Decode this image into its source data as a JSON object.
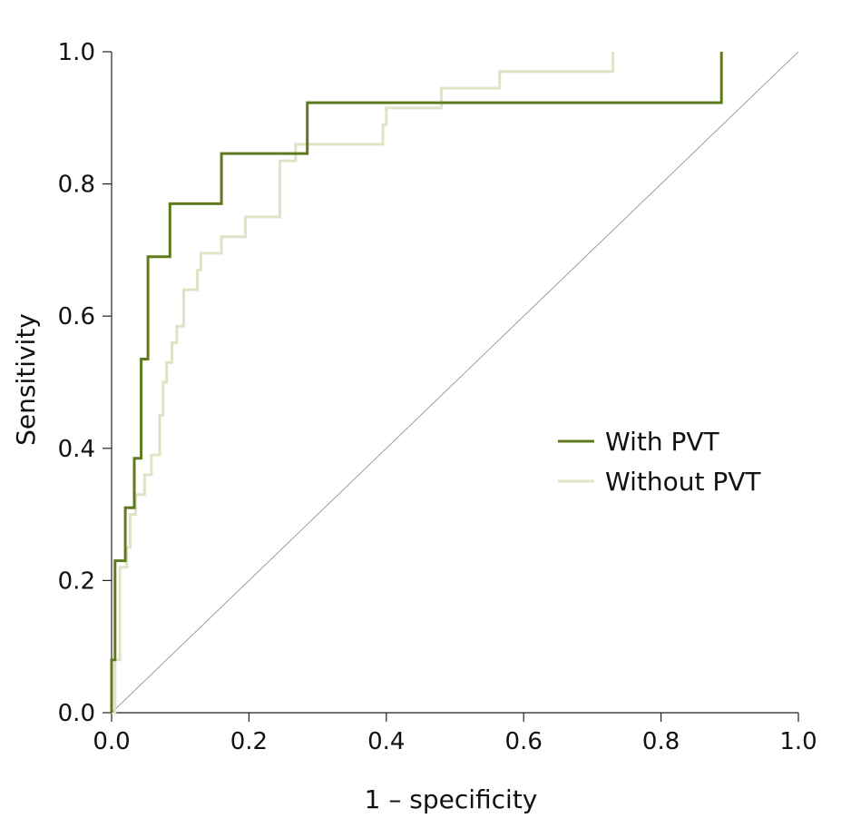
{
  "chart_data": {
    "type": "line",
    "title": "",
    "xlabel": "1 – specificity",
    "ylabel": "Sensitivity",
    "xlim": [
      0,
      1
    ],
    "ylim": [
      0,
      1
    ],
    "x_ticks": [
      "0.0",
      "0.2",
      "0.4",
      "0.6",
      "0.8",
      "1.0"
    ],
    "y_ticks": [
      "0.0",
      "0.2",
      "0.4",
      "0.6",
      "0.8",
      "1.0"
    ],
    "grid": false,
    "legend_position": "center-right",
    "reference_line": {
      "from": [
        0,
        0
      ],
      "to": [
        1,
        1
      ],
      "color": "#888888"
    },
    "series": [
      {
        "name": "With PVT",
        "color": "#5f7a1e",
        "points": [
          [
            0,
            0
          ],
          [
            0,
            0.08
          ],
          [
            0.005,
            0.08
          ],
          [
            0.005,
            0.23
          ],
          [
            0.02,
            0.23
          ],
          [
            0.02,
            0.31
          ],
          [
            0.033,
            0.31
          ],
          [
            0.033,
            0.385
          ],
          [
            0.043,
            0.385
          ],
          [
            0.043,
            0.535
          ],
          [
            0.053,
            0.535
          ],
          [
            0.053,
            0.69
          ],
          [
            0.085,
            0.69
          ],
          [
            0.085,
            0.77
          ],
          [
            0.16,
            0.77
          ],
          [
            0.16,
            0.846
          ],
          [
            0.285,
            0.846
          ],
          [
            0.285,
            0.923
          ],
          [
            0.888,
            0.923
          ],
          [
            0.888,
            1.0
          ]
        ]
      },
      {
        "name": "Without PVT",
        "color": "#dfe3c6",
        "points": [
          [
            0,
            0
          ],
          [
            0.005,
            0
          ],
          [
            0.005,
            0.08
          ],
          [
            0.012,
            0.08
          ],
          [
            0.012,
            0.22
          ],
          [
            0.022,
            0.22
          ],
          [
            0.022,
            0.25
          ],
          [
            0.027,
            0.25
          ],
          [
            0.027,
            0.3
          ],
          [
            0.035,
            0.3
          ],
          [
            0.035,
            0.33
          ],
          [
            0.048,
            0.33
          ],
          [
            0.048,
            0.36
          ],
          [
            0.058,
            0.36
          ],
          [
            0.058,
            0.39
          ],
          [
            0.07,
            0.39
          ],
          [
            0.07,
            0.45
          ],
          [
            0.075,
            0.45
          ],
          [
            0.075,
            0.5
          ],
          [
            0.08,
            0.5
          ],
          [
            0.08,
            0.53
          ],
          [
            0.088,
            0.53
          ],
          [
            0.088,
            0.56
          ],
          [
            0.095,
            0.56
          ],
          [
            0.095,
            0.585
          ],
          [
            0.105,
            0.585
          ],
          [
            0.105,
            0.64
          ],
          [
            0.125,
            0.64
          ],
          [
            0.125,
            0.67
          ],
          [
            0.13,
            0.67
          ],
          [
            0.13,
            0.695
          ],
          [
            0.16,
            0.695
          ],
          [
            0.16,
            0.72
          ],
          [
            0.195,
            0.72
          ],
          [
            0.195,
            0.75
          ],
          [
            0.245,
            0.75
          ],
          [
            0.245,
            0.835
          ],
          [
            0.268,
            0.835
          ],
          [
            0.268,
            0.86
          ],
          [
            0.395,
            0.86
          ],
          [
            0.395,
            0.89
          ],
          [
            0.4,
            0.89
          ],
          [
            0.4,
            0.915
          ],
          [
            0.48,
            0.915
          ],
          [
            0.48,
            0.945
          ],
          [
            0.565,
            0.945
          ],
          [
            0.565,
            0.97
          ],
          [
            0.73,
            0.97
          ],
          [
            0.73,
            1.0
          ]
        ]
      }
    ]
  }
}
